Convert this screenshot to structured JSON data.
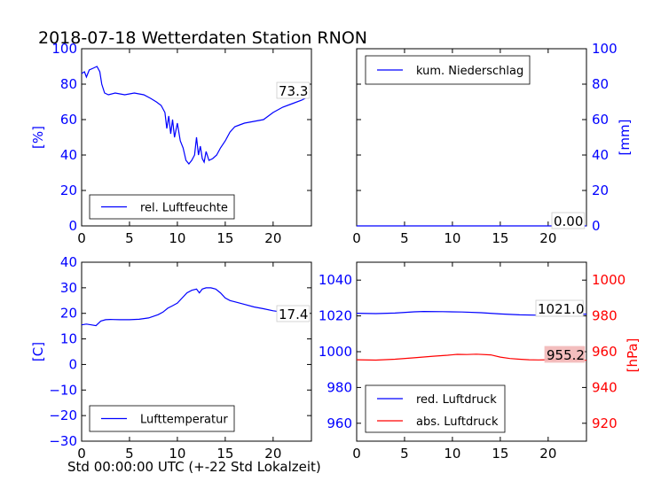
{
  "figure": {
    "title": "2018-07-18 Wetterdaten Station RNON",
    "xlabel": "Std 00:00:00 UTC (+-22 Std Lokalzeit)"
  },
  "colors": {
    "blue": "#0000ff",
    "red": "#ff0000",
    "black": "#000000"
  },
  "chart_data": [
    {
      "type": "line",
      "panel": "top-left",
      "ylabel": "[%]",
      "xlim": [
        0,
        24
      ],
      "ylim": [
        0,
        100
      ],
      "xticks": [
        0,
        5,
        10,
        15,
        20
      ],
      "yticks": [
        0,
        20,
        40,
        60,
        80,
        100
      ],
      "ytick_color": "blue",
      "legend": "lower-left",
      "series": [
        {
          "name": "rel. Luftfeuchte",
          "color": "blue",
          "x": [
            0,
            0.3,
            0.5,
            0.8,
            1.2,
            1.6,
            1.9,
            2.1,
            2.4,
            2.8,
            3.5,
            4.5,
            5.5,
            6.5,
            7.2,
            7.8,
            8.3,
            8.7,
            8.9,
            9.1,
            9.3,
            9.5,
            9.7,
            10.0,
            10.3,
            10.6,
            10.9,
            11.2,
            11.5,
            11.8,
            12.0,
            12.2,
            12.4,
            12.6,
            12.8,
            13.0,
            13.3,
            13.7,
            14.1,
            14.5,
            15.0,
            15.5,
            16.0,
            16.5,
            17.0,
            18.0,
            19.0,
            20.0,
            21.0,
            22.0,
            23.0,
            23.8
          ],
          "y": [
            86,
            87,
            84,
            88,
            89,
            90,
            87,
            80,
            75,
            74,
            75,
            74,
            75,
            74,
            72,
            70,
            68,
            64,
            55,
            62,
            52,
            60,
            50,
            58,
            48,
            44,
            37,
            35,
            37,
            40,
            50,
            40,
            45,
            38,
            36,
            42,
            37,
            38,
            40,
            44,
            48,
            53,
            56,
            57,
            58,
            59,
            60,
            64,
            67,
            69,
            71,
            73.3
          ]
        }
      ],
      "last_value_label": "73.3"
    },
    {
      "type": "line",
      "panel": "top-right",
      "ylabel": "[mm]",
      "xlim": [
        0,
        24
      ],
      "ylim": [
        0,
        100
      ],
      "xticks": [
        0,
        5,
        10,
        15,
        20
      ],
      "yticks": [
        0,
        20,
        40,
        60,
        80,
        100
      ],
      "ytick_color": "blue",
      "legend": "upper-left",
      "series": [
        {
          "name": "kum. Niederschlag",
          "color": "blue",
          "x": [
            0,
            24
          ],
          "y": [
            0,
            0
          ]
        }
      ],
      "last_value_label": "0.00"
    },
    {
      "type": "line",
      "panel": "bottom-left",
      "ylabel": "[C]",
      "xlim": [
        0,
        24
      ],
      "ylim": [
        -30,
        40
      ],
      "xticks": [
        0,
        5,
        10,
        15,
        20
      ],
      "yticks": [
        -30,
        -20,
        -10,
        0,
        10,
        20,
        30,
        40
      ],
      "ytick_color": "blue",
      "legend": "lower-left",
      "series": [
        {
          "name": "Lufttemperatur",
          "color": "blue",
          "x": [
            0,
            0.5,
            1.0,
            1.5,
            2.0,
            2.5,
            3.0,
            4.0,
            5.0,
            6.0,
            7.0,
            8.0,
            8.5,
            9.0,
            9.5,
            10.0,
            10.5,
            11.0,
            11.5,
            12.0,
            12.3,
            12.6,
            13.0,
            13.5,
            14.0,
            14.5,
            15.0,
            15.5,
            16.0,
            17.0,
            18.0,
            19.0,
            20.0,
            21.0,
            22.0,
            23.0,
            23.8
          ],
          "y": [
            15.5,
            15.8,
            15.5,
            15.2,
            17,
            17.5,
            17.6,
            17.5,
            17.5,
            17.7,
            18.2,
            19.5,
            20.5,
            22,
            23,
            24,
            26,
            28,
            29,
            29.5,
            28,
            29.5,
            30,
            30,
            29.5,
            28,
            26,
            25,
            24.5,
            23.5,
            22.5,
            21.8,
            21,
            20.5,
            19.8,
            18.5,
            17.4
          ]
        }
      ],
      "last_value_label": "17.4"
    },
    {
      "type": "line",
      "panel": "bottom-right",
      "xlim": [
        0,
        24
      ],
      "ylim_left": [
        950,
        1050
      ],
      "yticks_left": [
        960,
        980,
        1000,
        1020,
        1040
      ],
      "ytick_color_left": "blue",
      "ylim_right": [
        910,
        1010
      ],
      "yticks_right": [
        920,
        940,
        960,
        980,
        1000
      ],
      "ytick_color_right": "red",
      "ylabel_right": "[hPa]",
      "xticks": [
        0,
        5,
        10,
        15,
        20
      ],
      "legend": "lower-left",
      "series": [
        {
          "name": "red. Luftdruck",
          "color": "blue",
          "axis": "left",
          "x": [
            0,
            2,
            4,
            6,
            7,
            9,
            11,
            13,
            15,
            17,
            19,
            21,
            23,
            24
          ],
          "y": [
            1021.5,
            1021.3,
            1021.6,
            1022.3,
            1022.5,
            1022.4,
            1022.2,
            1021.8,
            1021.1,
            1020.6,
            1020.4,
            1020.7,
            1021.0,
            1021.0
          ]
        },
        {
          "name": "abs. Luftdruck",
          "color": "red",
          "axis": "right",
          "x": [
            0,
            2,
            4,
            6,
            8,
            9.5,
            10.5,
            11.5,
            12.5,
            14,
            15,
            16,
            17,
            18,
            19,
            20,
            22,
            24
          ],
          "y": [
            955.5,
            955.3,
            955.8,
            956.6,
            957.5,
            958.0,
            958.5,
            958.4,
            958.6,
            958.2,
            957.0,
            956.2,
            955.8,
            955.5,
            955.4,
            955.5,
            955.9,
            955.2
          ]
        }
      ],
      "last_value_labels": [
        "1021.0",
        "955.2"
      ]
    }
  ]
}
